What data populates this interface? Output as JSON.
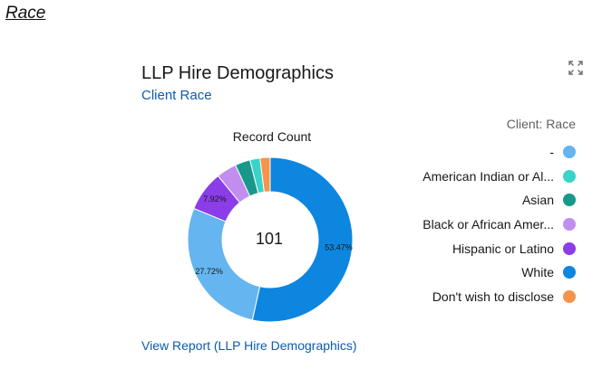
{
  "section": {
    "title": "Race"
  },
  "card": {
    "title": "LLP Hire Demographics",
    "subtitle": "Client Race",
    "expand_icon": "expand-icon",
    "link": "View Report (LLP Hire Demographics)"
  },
  "chart_data": {
    "type": "donut",
    "measure_label": "Record Count",
    "total": "101",
    "legend_title": "Client: Race",
    "legend_position": "right",
    "series": [
      {
        "label": "-",
        "percent": 27.72,
        "color": "#64b5f0",
        "data_label": "27.72%"
      },
      {
        "label": "American Indian or Al...",
        "percent": 1.98,
        "color": "#3ad3c9",
        "data_label": ""
      },
      {
        "label": "Asian",
        "percent": 2.97,
        "color": "#18988b",
        "data_label": ""
      },
      {
        "label": "Black or African Amer...",
        "percent": 3.96,
        "color": "#c18ef0",
        "data_label": ""
      },
      {
        "label": "Hispanic or Latino",
        "percent": 7.92,
        "color": "#8b3de8",
        "data_label": "7.92%"
      },
      {
        "label": "White",
        "percent": 53.47,
        "color": "#0d86e0",
        "data_label": "53.47%"
      },
      {
        "label": "Don't wish to disclose",
        "percent": 1.98,
        "color": "#f5944c",
        "data_label": ""
      }
    ]
  }
}
